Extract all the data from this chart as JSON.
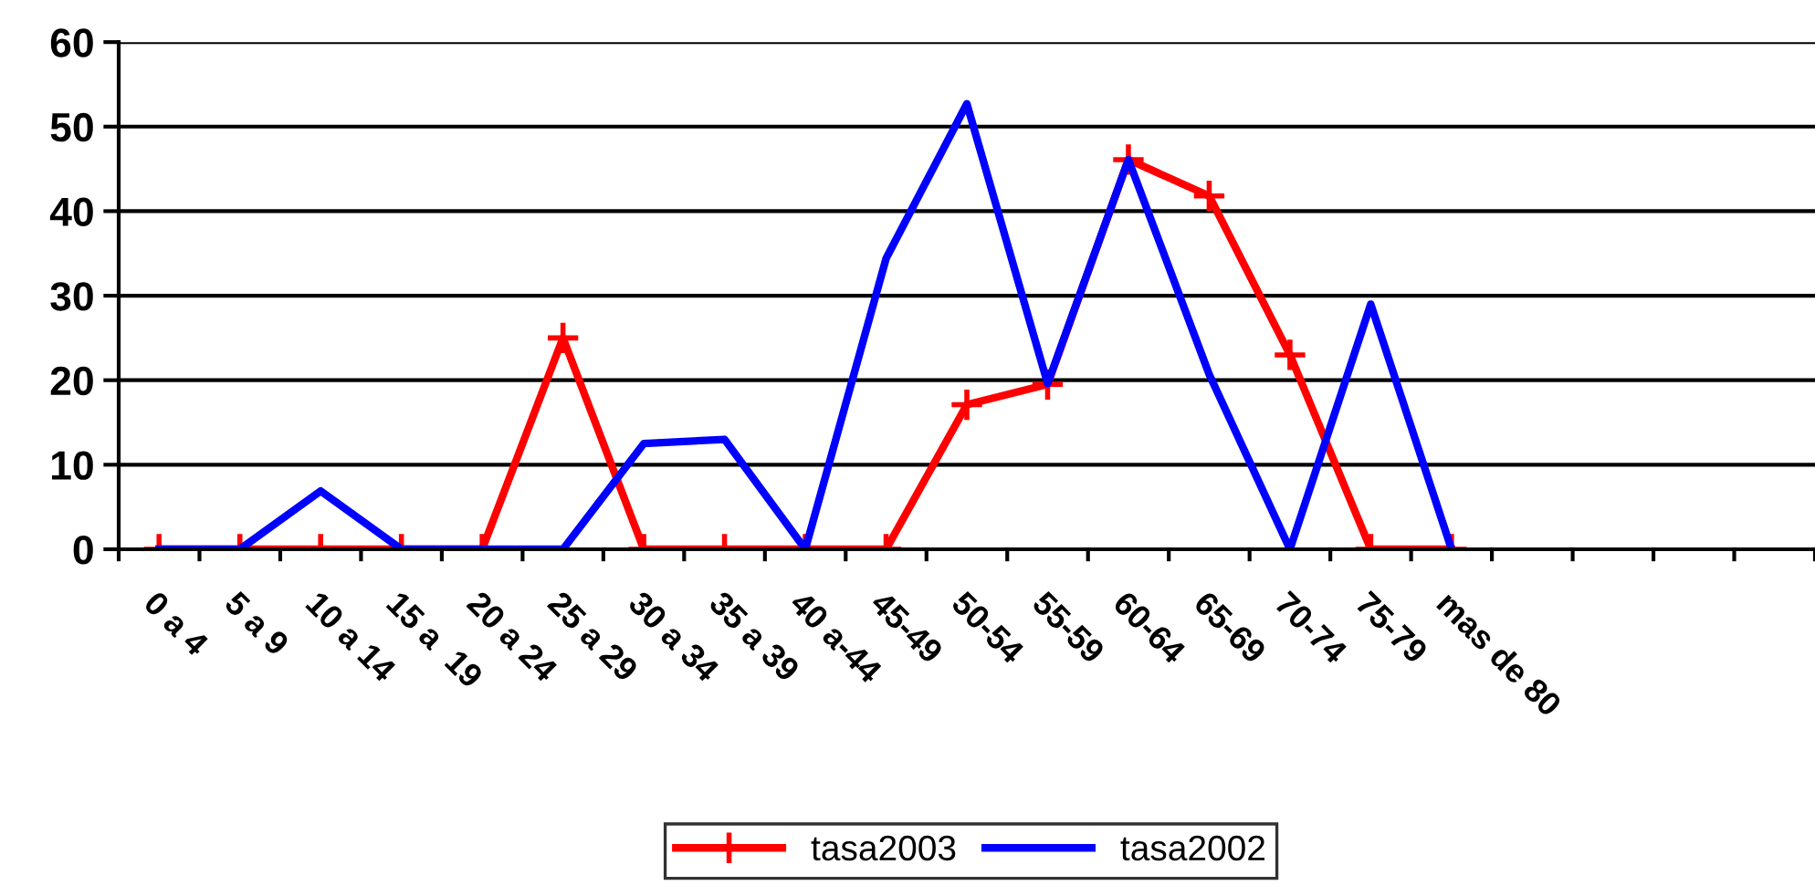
{
  "chart_data": {
    "type": "line",
    "categories": [
      "0 a 4",
      "5 a 9",
      "10 a 14",
      "15 a  19",
      "20 a 24",
      "25 a 29",
      "30 a 34",
      "35 a 39",
      "40 a-44",
      "45-49",
      "50-54",
      "55-59",
      "60-64",
      "65-69",
      "70-74",
      "75-79",
      "mas de 80",
      null,
      null,
      null,
      null
    ],
    "series": [
      {
        "name": "tasa2003",
        "color": "#ff0000",
        "marker": "cross",
        "values": [
          0,
          0,
          0,
          0,
          0,
          25,
          0,
          0,
          0,
          0,
          17.1,
          19.5,
          46.1,
          41.8,
          23,
          0,
          0,
          null,
          null,
          null,
          null
        ]
      },
      {
        "name": "tasa2002",
        "color": "#0000ff",
        "marker": "none",
        "values": [
          0,
          0,
          6.9,
          0,
          0,
          0,
          12.5,
          13,
          0,
          34.4,
          52.7,
          19.6,
          46.1,
          20.7,
          0,
          29,
          0,
          null,
          null,
          null,
          null
        ]
      }
    ],
    "ylim": [
      0,
      60
    ],
    "yticks": [
      0,
      10,
      20,
      30,
      40,
      50,
      60
    ],
    "grid": "y",
    "legend": "bottom",
    "line_style": "solid"
  }
}
